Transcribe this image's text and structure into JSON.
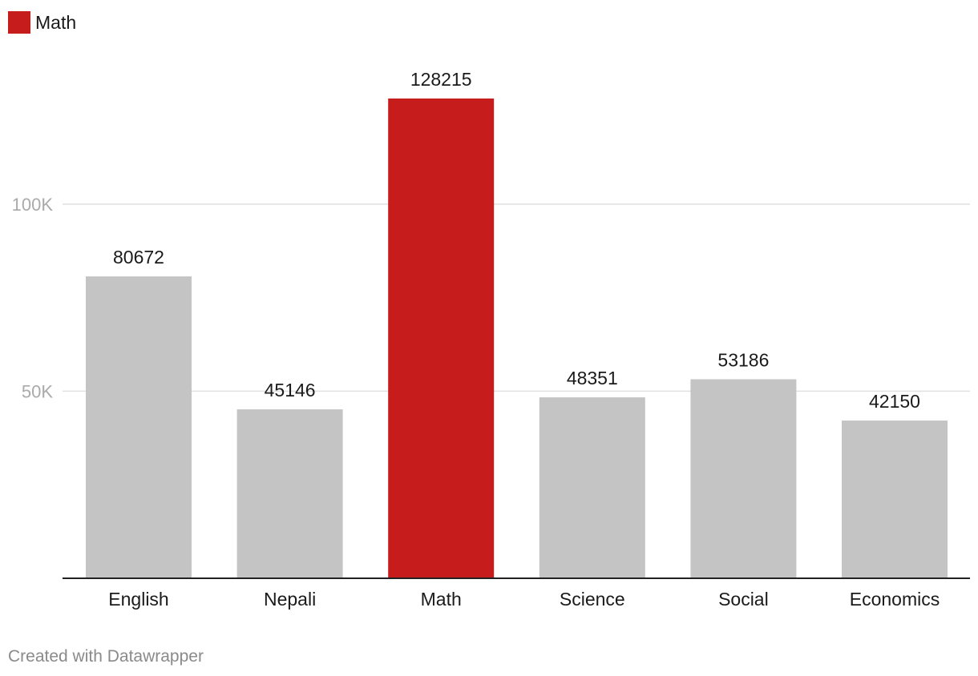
{
  "legend": {
    "label": "Math"
  },
  "colors": {
    "highlight": "#c61c1c",
    "default": "#c4c4c4",
    "grid": "#e1e1e1",
    "tick": "#aaaaaa",
    "axis": "#222222",
    "text": "#1a1a1a"
  },
  "chart_data": {
    "type": "bar",
    "title": "",
    "xlabel": "",
    "ylabel": "",
    "categories": [
      "English",
      "Nepali",
      "Math",
      "Science",
      "Social",
      "Economics"
    ],
    "values": [
      80672,
      45146,
      128215,
      48351,
      53186,
      42150
    ],
    "highlight": "Math",
    "ylim": [
      0,
      128215
    ],
    "yticks": [
      50000,
      100000
    ],
    "ytick_labels": [
      "50K",
      "100K"
    ],
    "grid": true,
    "legend_position": "top-left"
  },
  "footer": {
    "credit": "Created with Datawrapper"
  }
}
